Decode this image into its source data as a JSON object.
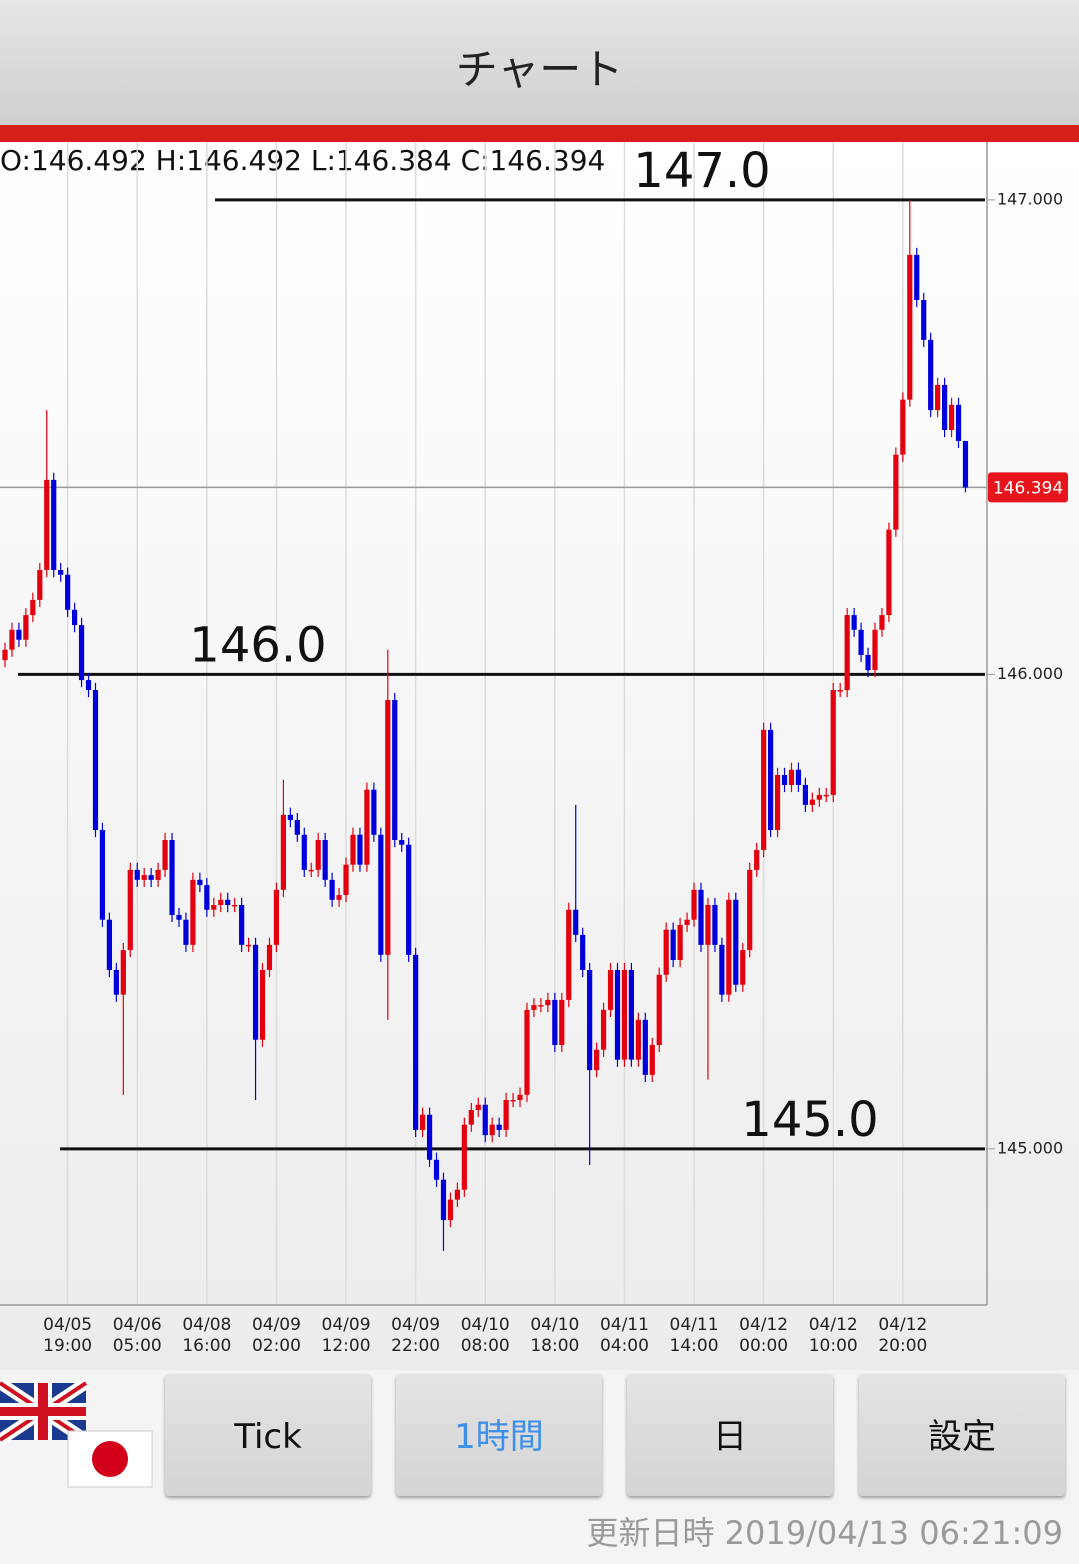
{
  "header": {
    "title": "チャート"
  },
  "chart_data": {
    "type": "candlestick",
    "ohlc_label": "O:146.492 H:146.492 L:146.384 C:146.394",
    "categories": [
      null,
      null,
      null,
      null,
      null,
      null,
      null,
      null,
      null,
      "04/05 19:00",
      null,
      null,
      null,
      null,
      null,
      null,
      null,
      null,
      null,
      "04/06 05:00",
      null,
      null,
      null,
      null,
      null,
      null,
      null,
      null,
      null,
      "04/08 16:00",
      null,
      null,
      null,
      null,
      null,
      null,
      null,
      null,
      null,
      "04/09 02:00",
      null,
      null,
      null,
      null,
      null,
      null,
      null,
      null,
      null,
      "04/09 12:00",
      null,
      null,
      null,
      null,
      null,
      null,
      null,
      null,
      null,
      "04/09 22:00",
      null,
      null,
      null,
      null,
      null,
      null,
      null,
      null,
      null,
      "04/10 08:00",
      null,
      null,
      null,
      null,
      null,
      null,
      null,
      null,
      null,
      "04/10 18:00",
      null,
      null,
      null,
      null,
      null,
      null,
      null,
      null,
      null,
      "04/11 04:00",
      null,
      null,
      null,
      null,
      null,
      null,
      null,
      null,
      null,
      "04/11 14:00",
      null,
      null,
      null,
      null,
      null,
      null,
      null,
      null,
      null,
      "04/12 00:00",
      null,
      null,
      null,
      null,
      null,
      null,
      null,
      null,
      null,
      "04/12 10:00",
      null,
      null,
      null,
      null,
      null,
      null,
      null,
      null,
      null,
      "04/12 20:00",
      null,
      null,
      null,
      null,
      null,
      null,
      null,
      null,
      null
    ],
    "open": [
      146.03,
      146.052,
      146.094,
      146.073,
      146.125,
      146.157,
      146.22,
      146.41,
      146.22,
      146.21,
      146.136,
      146.104,
      145.988,
      145.967,
      145.672,
      145.483,
      145.377,
      145.325,
      145.419,
      145.588,
      145.567,
      145.577,
      145.567,
      145.588,
      145.651,
      145.493,
      145.483,
      145.43,
      145.567,
      145.556,
      145.504,
      145.514,
      145.525,
      145.514,
      145.514,
      145.43,
      145.43,
      145.23,
      145.377,
      145.43,
      145.546,
      145.704,
      145.693,
      145.662,
      145.588,
      145.588,
      145.651,
      145.567,
      145.525,
      145.535,
      145.599,
      145.662,
      145.599,
      145.757,
      145.662,
      145.409,
      145.946,
      145.651,
      145.641,
      145.409,
      145.04,
      145.072,
      144.977,
      144.935,
      144.85,
      144.893,
      144.914,
      145.051,
      145.082,
      145.093,
      145.029,
      145.051,
      145.04,
      145.103,
      145.103,
      145.114,
      145.293,
      145.303,
      145.303,
      145.314,
      145.219,
      145.314,
      145.504,
      145.451,
      145.377,
      145.166,
      145.209,
      145.293,
      145.377,
      145.188,
      145.377,
      145.188,
      145.272,
      145.156,
      145.219,
      145.367,
      145.462,
      145.398,
      145.472,
      145.483,
      145.546,
      145.43,
      145.514,
      145.43,
      145.325,
      145.525,
      145.346,
      145.419,
      145.588,
      145.63,
      145.883,
      145.672,
      145.788,
      145.767,
      145.799,
      145.767,
      145.725,
      145.736,
      145.746,
      145.746,
      145.967,
      145.967,
      146.125,
      146.094,
      146.041,
      146.009,
      146.094,
      146.125,
      146.305,
      146.463,
      146.579,
      146.884,
      146.789,
      146.705,
      146.557,
      146.61,
      146.515,
      146.568,
      146.492
    ],
    "high": [
      146.067,
      146.109,
      146.109,
      146.14,
      146.172,
      146.235,
      146.557,
      146.425,
      146.235,
      146.225,
      146.151,
      146.119,
      146.003,
      145.982,
      145.687,
      145.498,
      145.392,
      145.434,
      145.603,
      145.603,
      145.592,
      145.592,
      145.603,
      145.666,
      145.666,
      145.508,
      145.498,
      145.582,
      145.582,
      145.571,
      145.529,
      145.54,
      145.54,
      145.529,
      145.529,
      145.445,
      145.445,
      145.392,
      145.445,
      145.561,
      145.778,
      145.719,
      145.708,
      145.677,
      145.603,
      145.666,
      145.666,
      145.582,
      145.55,
      145.614,
      145.677,
      145.677,
      145.772,
      145.772,
      145.677,
      146.052,
      145.961,
      145.666,
      145.656,
      145.424,
      145.087,
      145.087,
      144.992,
      144.95,
      144.908,
      144.929,
      145.066,
      145.097,
      145.108,
      145.108,
      145.066,
      145.066,
      145.118,
      145.118,
      145.129,
      145.308,
      145.318,
      145.318,
      145.329,
      145.329,
      145.329,
      145.519,
      145.725,
      145.466,
      145.392,
      145.224,
      145.308,
      145.392,
      145.392,
      145.392,
      145.392,
      145.287,
      145.287,
      145.234,
      145.382,
      145.477,
      145.477,
      145.487,
      145.498,
      145.561,
      145.561,
      145.529,
      145.529,
      145.445,
      145.54,
      145.54,
      145.434,
      145.603,
      145.645,
      145.898,
      145.898,
      145.803,
      145.803,
      145.814,
      145.814,
      145.782,
      145.751,
      145.761,
      145.761,
      145.982,
      145.982,
      146.14,
      146.14,
      146.109,
      146.056,
      146.109,
      146.14,
      146.32,
      146.478,
      146.594,
      147.0,
      146.899,
      146.804,
      146.72,
      146.625,
      146.625,
      146.583,
      146.583,
      146.492
    ],
    "low": [
      146.015,
      146.037,
      146.058,
      146.058,
      146.11,
      146.142,
      146.205,
      146.205,
      146.195,
      146.121,
      146.089,
      145.973,
      145.952,
      145.657,
      145.468,
      145.362,
      145.31,
      145.114,
      145.404,
      145.552,
      145.552,
      145.552,
      145.552,
      145.573,
      145.478,
      145.468,
      145.415,
      145.415,
      145.541,
      145.489,
      145.489,
      145.499,
      145.499,
      145.499,
      145.415,
      145.415,
      145.103,
      145.215,
      145.362,
      145.415,
      145.531,
      145.678,
      145.647,
      145.573,
      145.573,
      145.573,
      145.552,
      145.51,
      145.51,
      145.52,
      145.584,
      145.584,
      145.584,
      145.647,
      145.394,
      145.272,
      145.636,
      145.626,
      145.394,
      145.025,
      145.025,
      144.962,
      144.92,
      144.785,
      144.835,
      144.878,
      144.899,
      145.036,
      145.067,
      145.014,
      145.014,
      145.025,
      145.025,
      145.088,
      145.088,
      145.099,
      145.278,
      145.288,
      145.288,
      145.204,
      145.204,
      145.299,
      145.436,
      145.362,
      144.966,
      145.151,
      145.194,
      145.278,
      145.173,
      145.173,
      145.173,
      145.173,
      145.141,
      145.141,
      145.204,
      145.352,
      145.383,
      145.383,
      145.457,
      145.468,
      145.415,
      145.146,
      145.415,
      145.31,
      145.31,
      145.331,
      145.331,
      145.404,
      145.573,
      145.615,
      145.657,
      145.657,
      145.752,
      145.752,
      145.752,
      145.71,
      145.71,
      145.721,
      145.731,
      145.731,
      145.952,
      145.952,
      146.079,
      146.026,
      145.994,
      145.994,
      146.079,
      146.11,
      146.29,
      146.448,
      146.564,
      146.774,
      146.69,
      146.542,
      146.542,
      146.5,
      146.5,
      146.477,
      146.384
    ],
    "close": [
      146.052,
      146.094,
      146.073,
      146.125,
      146.157,
      146.22,
      146.41,
      146.22,
      146.21,
      146.136,
      146.104,
      145.988,
      145.967,
      145.672,
      145.483,
      145.377,
      145.325,
      145.419,
      145.588,
      145.567,
      145.577,
      145.567,
      145.588,
      145.651,
      145.493,
      145.483,
      145.43,
      145.567,
      145.556,
      145.504,
      145.514,
      145.525,
      145.514,
      145.514,
      145.43,
      145.43,
      145.23,
      145.377,
      145.43,
      145.546,
      145.704,
      145.693,
      145.662,
      145.588,
      145.588,
      145.651,
      145.567,
      145.525,
      145.535,
      145.599,
      145.662,
      145.599,
      145.757,
      145.662,
      145.409,
      145.946,
      145.651,
      145.641,
      145.409,
      145.04,
      145.072,
      144.977,
      144.935,
      144.85,
      144.893,
      144.914,
      145.051,
      145.082,
      145.093,
      145.029,
      145.051,
      145.04,
      145.103,
      145.103,
      145.114,
      145.293,
      145.303,
      145.303,
      145.314,
      145.219,
      145.314,
      145.504,
      145.451,
      145.377,
      145.166,
      145.209,
      145.293,
      145.377,
      145.188,
      145.377,
      145.188,
      145.272,
      145.156,
      145.219,
      145.367,
      145.462,
      145.398,
      145.472,
      145.483,
      145.546,
      145.43,
      145.514,
      145.43,
      145.325,
      145.525,
      145.346,
      145.419,
      145.588,
      145.63,
      145.883,
      145.672,
      145.788,
      145.767,
      145.799,
      145.767,
      145.725,
      145.736,
      145.746,
      145.746,
      145.967,
      145.967,
      146.125,
      146.094,
      146.041,
      146.009,
      146.094,
      146.125,
      146.305,
      146.463,
      146.579,
      146.884,
      146.789,
      146.705,
      146.557,
      146.61,
      146.515,
      146.568,
      146.492,
      146.394
    ],
    "up_color": "#e3000f",
    "down_color": "#0000dc",
    "ylim": [
      144.671,
      147.122
    ],
    "yticks": [
      {
        "value": 147,
        "label": "147.000"
      },
      {
        "value": 146,
        "label": "146.000"
      },
      {
        "value": 145,
        "label": "145.000"
      }
    ],
    "grid": true,
    "last_price": 146.394,
    "annotations": [
      {
        "value": 147,
        "label": "147.0"
      },
      {
        "value": 146,
        "label": "146.0"
      },
      {
        "value": 145,
        "label": "145.0"
      }
    ]
  },
  "controls": {
    "buttons": [
      "Tick",
      "1時間",
      "日",
      "設定"
    ],
    "active": 1
  },
  "footer": {
    "updated": "更新日時 2019/04/13 06:21:09"
  }
}
